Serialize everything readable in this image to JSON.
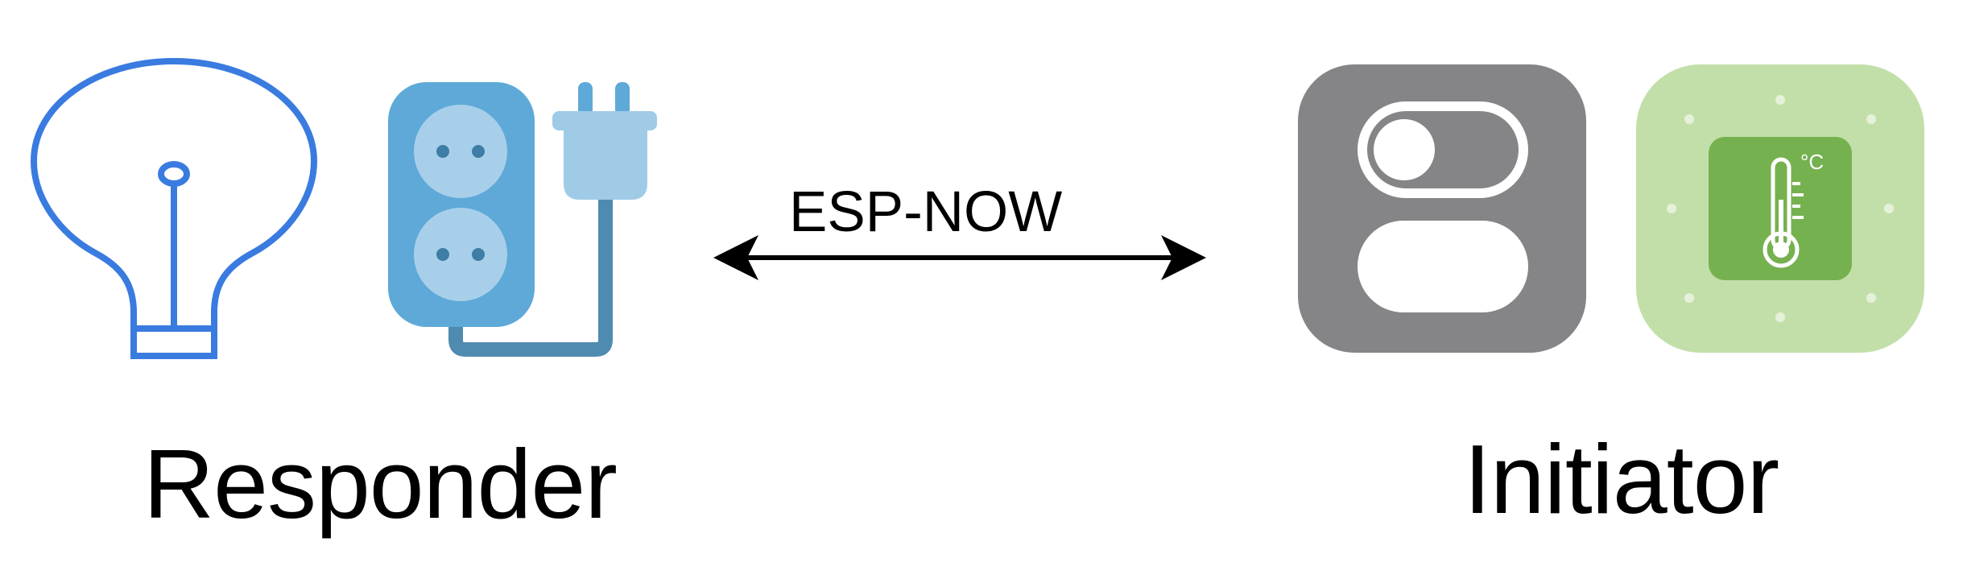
{
  "responder": {
    "label": "Responder",
    "icons": [
      "lightbulb-icon",
      "power-strip-icon"
    ]
  },
  "initiator": {
    "label": "Initiator",
    "icons": [
      "toggle-switch-icon",
      "thermometer-sensor-icon"
    ],
    "sensor_unit": "°C"
  },
  "link": {
    "label": "ESP-NOW",
    "direction": "bidirectional"
  },
  "colors": {
    "bulb_stroke": "#3a7be0",
    "strip_body": "#5ea9d8",
    "strip_socket": "#a8cfea",
    "plug_head": "#9fcbe6",
    "cable": "#4f8bb0",
    "switch_bg": "#858588",
    "sensor_bg": "#c3dfa9",
    "sensor_panel": "#76b150",
    "arrow": "#000000",
    "text": "#000000"
  }
}
